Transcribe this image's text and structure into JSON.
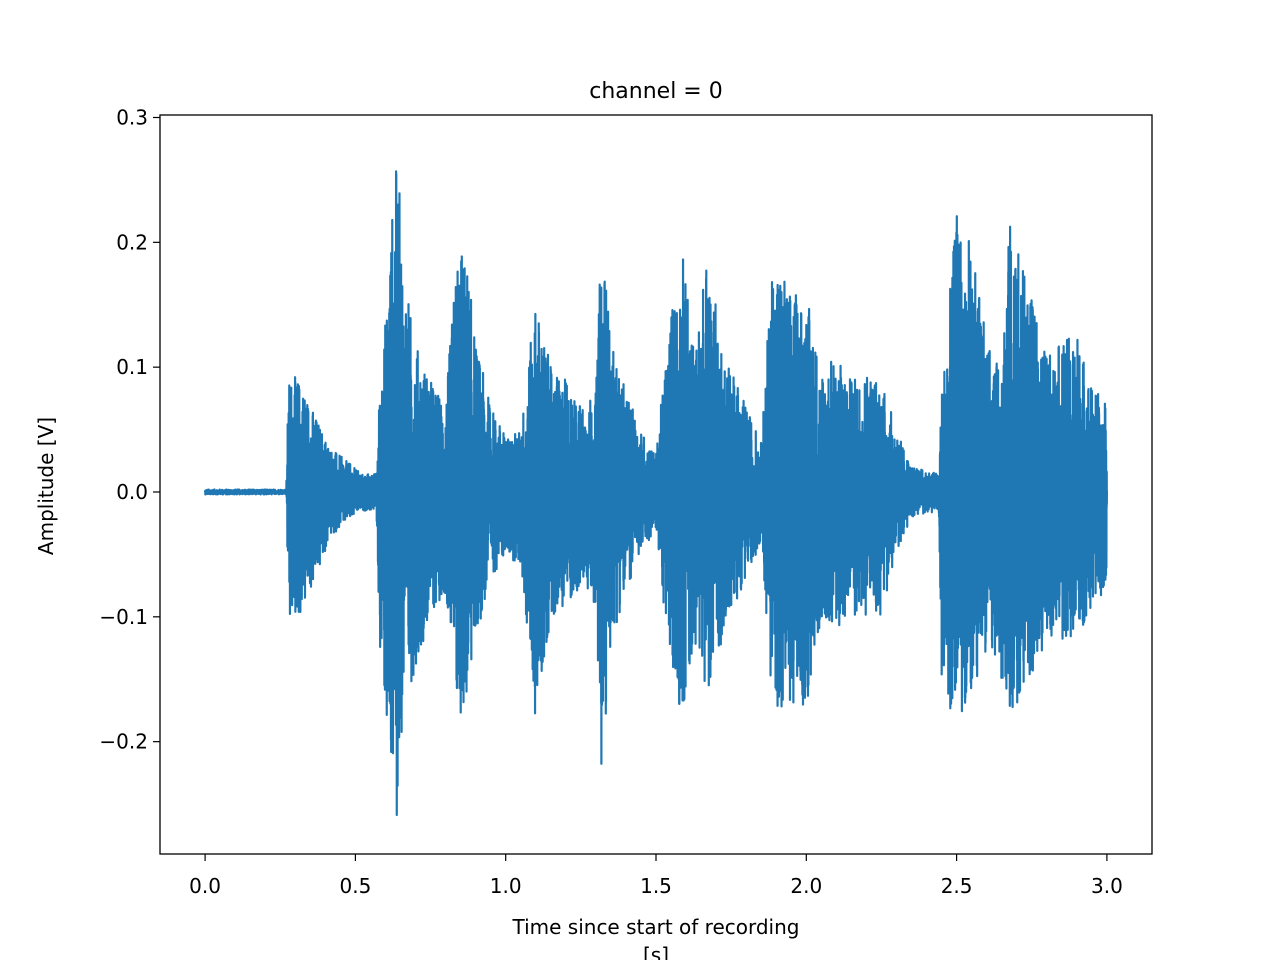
{
  "chart_data": {
    "type": "line",
    "title": "channel = 0",
    "xlabel_lines": [
      "Time since start of recording",
      "[s]"
    ],
    "ylabel": "Amplitude [V]",
    "xlim": [
      -0.15,
      3.15
    ],
    "ylim": [
      -0.29,
      0.302
    ],
    "xticks": [
      0.0,
      0.5,
      1.0,
      1.5,
      2.0,
      2.5,
      3.0
    ],
    "xtick_labels": [
      "0.0",
      "0.5",
      "1.0",
      "1.5",
      "2.0",
      "2.5",
      "3.0"
    ],
    "yticks": [
      -0.2,
      -0.1,
      0.0,
      0.1,
      0.2,
      0.3
    ],
    "ytick_labels": [
      "−0.2",
      "−0.1",
      "0.0",
      "0.1",
      "0.2",
      "0.3"
    ],
    "grid": false,
    "line_color": "#1f77b4",
    "envelope": {
      "t": [
        0.0,
        0.27,
        0.275,
        0.28,
        0.32,
        0.37,
        0.42,
        0.47,
        0.52,
        0.57,
        0.58,
        0.6,
        0.62,
        0.64,
        0.66,
        0.7,
        0.75,
        0.8,
        0.84,
        0.87,
        0.9,
        0.95,
        1.0,
        1.05,
        1.1,
        1.15,
        1.2,
        1.25,
        1.3,
        1.32,
        1.35,
        1.4,
        1.45,
        1.5,
        1.55,
        1.59,
        1.63,
        1.67,
        1.72,
        1.78,
        1.85,
        1.89,
        1.95,
        2.0,
        2.05,
        2.1,
        2.15,
        2.2,
        2.25,
        2.3,
        2.35,
        2.44,
        2.45,
        2.5,
        2.55,
        2.6,
        2.64,
        2.68,
        2.72,
        2.8,
        2.85,
        2.9,
        2.95,
        3.0
      ],
      "max": [
        0.002,
        0.002,
        0.06,
        0.095,
        0.09,
        0.06,
        0.035,
        0.025,
        0.015,
        0.015,
        0.08,
        0.14,
        0.22,
        0.275,
        0.18,
        0.12,
        0.09,
        0.07,
        0.2,
        0.19,
        0.12,
        0.07,
        0.045,
        0.05,
        0.155,
        0.1,
        0.09,
        0.07,
        0.08,
        0.22,
        0.12,
        0.08,
        0.05,
        0.03,
        0.15,
        0.19,
        0.11,
        0.195,
        0.12,
        0.08,
        0.04,
        0.2,
        0.16,
        0.16,
        0.1,
        0.11,
        0.09,
        0.1,
        0.09,
        0.05,
        0.02,
        0.015,
        0.08,
        0.225,
        0.2,
        0.12,
        0.1,
        0.225,
        0.18,
        0.11,
        0.12,
        0.13,
        0.085,
        0.07
      ],
      "min": [
        -0.002,
        -0.002,
        -0.07,
        -0.105,
        -0.1,
        -0.07,
        -0.035,
        -0.025,
        -0.015,
        -0.015,
        -0.12,
        -0.18,
        -0.26,
        -0.26,
        -0.18,
        -0.14,
        -0.1,
        -0.08,
        -0.19,
        -0.17,
        -0.12,
        -0.07,
        -0.05,
        -0.06,
        -0.185,
        -0.1,
        -0.09,
        -0.08,
        -0.09,
        -0.25,
        -0.12,
        -0.08,
        -0.05,
        -0.03,
        -0.15,
        -0.18,
        -0.12,
        -0.16,
        -0.12,
        -0.08,
        -0.04,
        -0.18,
        -0.17,
        -0.18,
        -0.1,
        -0.11,
        -0.1,
        -0.1,
        -0.1,
        -0.05,
        -0.02,
        -0.015,
        -0.16,
        -0.19,
        -0.16,
        -0.13,
        -0.14,
        -0.18,
        -0.16,
        -0.12,
        -0.12,
        -0.12,
        -0.09,
        -0.08
      ]
    }
  }
}
